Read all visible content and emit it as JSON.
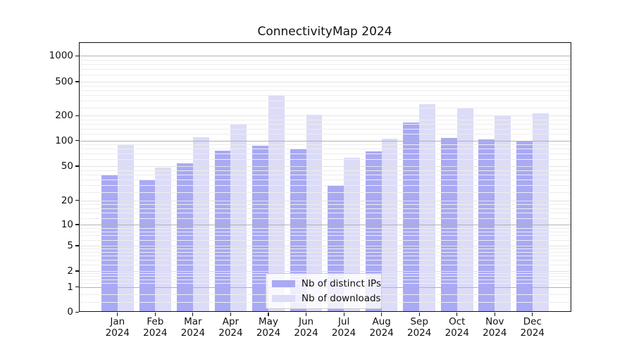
{
  "chart_data": {
    "type": "bar",
    "title": "ConnectivityMap 2024",
    "categories": [
      "Jan 2024",
      "Feb 2024",
      "Mar 2024",
      "Apr 2024",
      "May 2024",
      "Jun 2024",
      "Jul 2024",
      "Aug 2024",
      "Sep 2024",
      "Oct 2024",
      "Nov 2024",
      "Dec 2024"
    ],
    "series": [
      {
        "name": "Nb of distinct IPs",
        "color": "#a9a9f4",
        "values": [
          40,
          35,
          54,
          76,
          87,
          80,
          30,
          75,
          165,
          107,
          103,
          100
        ]
      },
      {
        "name": "Nb of downloads",
        "color": "#dcdcf8",
        "values": [
          90,
          48,
          110,
          158,
          352,
          204,
          63,
          106,
          273,
          245,
          200,
          211
        ]
      }
    ],
    "yscale": "symlog",
    "yticks": [
      0,
      1,
      2,
      5,
      10,
      20,
      50,
      100,
      200,
      500,
      1000
    ],
    "ylim": [
      0,
      1500
    ],
    "xlabel": "",
    "ylabel": "",
    "grid": true,
    "grid_decade_color": "#b2b2b2",
    "grid_minor_color": "#ededed",
    "legend_position": "lower center"
  }
}
